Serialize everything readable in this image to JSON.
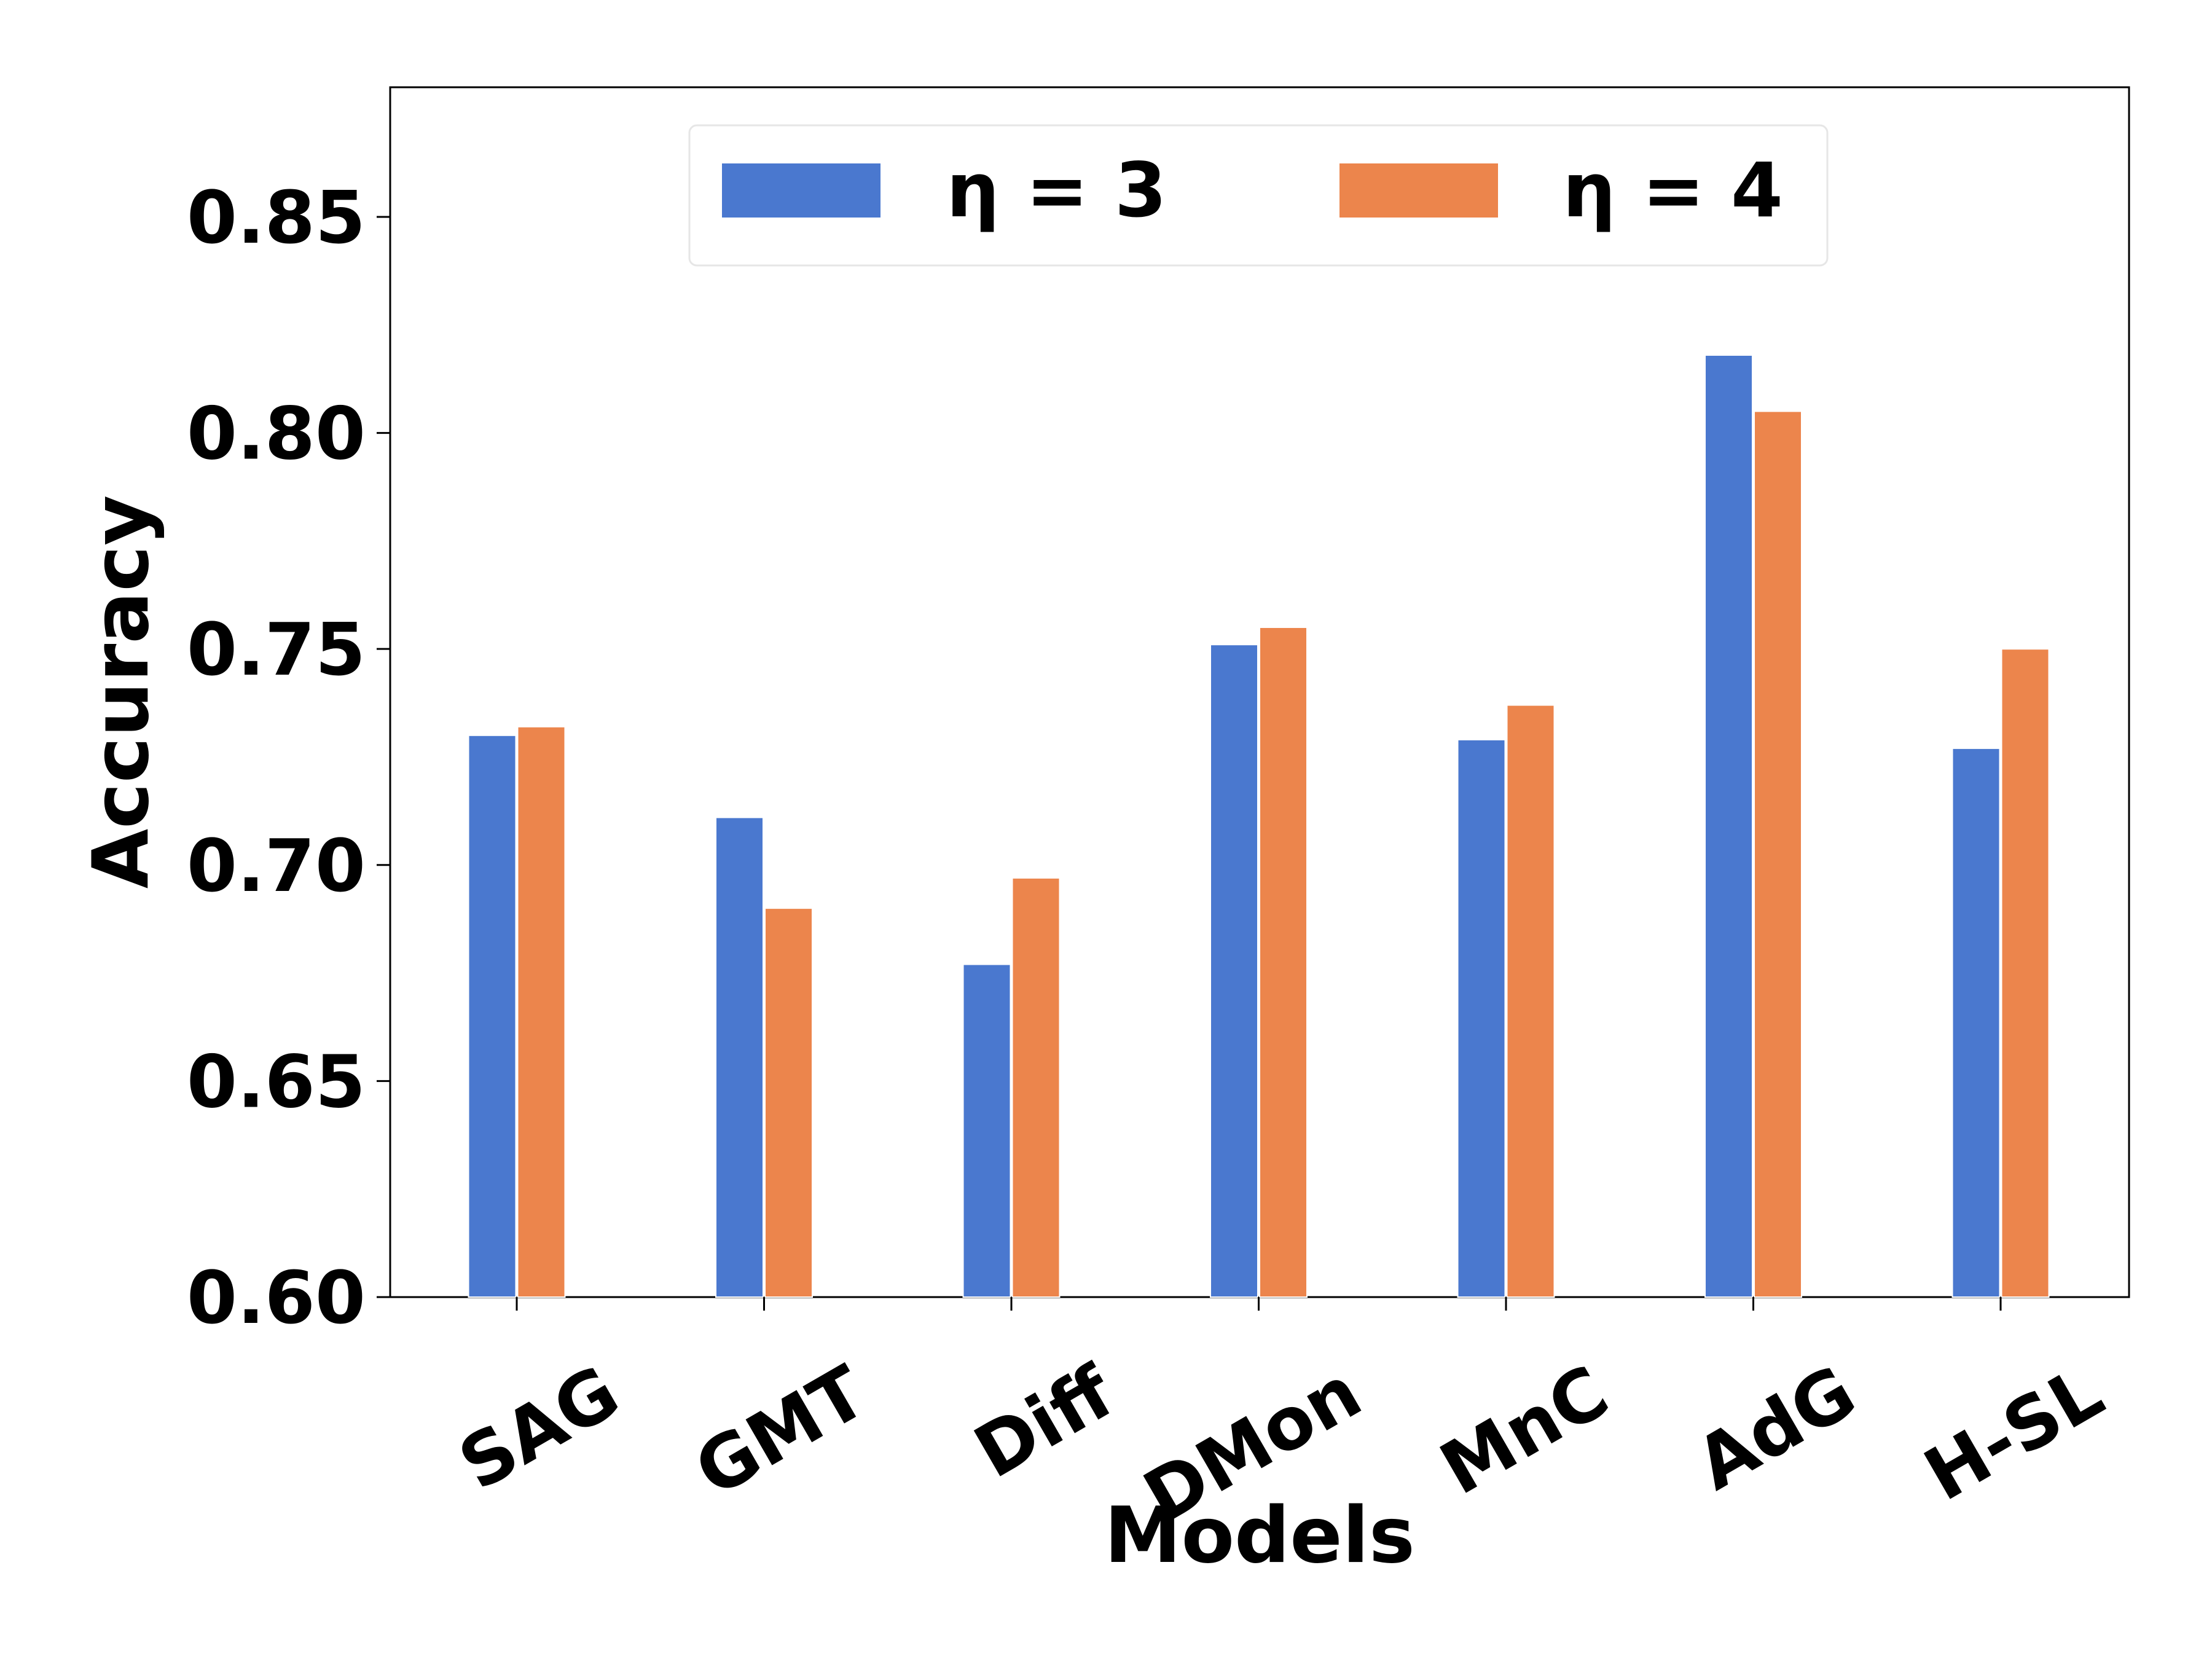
{
  "chart_data": {
    "type": "bar",
    "title": "",
    "xlabel": "Models",
    "ylabel": "Accuracy",
    "categories": [
      "SAG",
      "GMT",
      "Diff",
      "DMon",
      "MnC",
      "AdG",
      "H-SL"
    ],
    "series": [
      {
        "name": "η = 3",
        "color": "#4a78cf",
        "values": [
          0.73,
          0.711,
          0.677,
          0.751,
          0.729,
          0.818,
          0.727
        ]
      },
      {
        "name": "η = 4",
        "color": "#ec854c",
        "values": [
          0.732,
          0.69,
          0.697,
          0.755,
          0.737,
          0.805,
          0.75
        ]
      }
    ],
    "ylim": [
      0.6,
      0.88
    ],
    "yticks": [
      "0.60",
      "0.65",
      "0.70",
      "0.75",
      "0.80",
      "0.85"
    ],
    "grid": false,
    "legend_position": "top-center",
    "xtick_rotation": 30
  }
}
